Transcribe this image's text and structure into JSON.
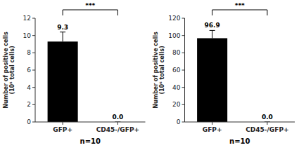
{
  "chart_data": [
    {
      "type": "bar",
      "categories": [
        "GFP+",
        "CD45-/GFP+"
      ],
      "values": [
        9.3,
        0.0
      ],
      "errors": [
        1.1,
        0.0
      ],
      "value_labels": [
        "9.3",
        "0.0"
      ],
      "data_labels": true,
      "ylabel": "Number of positive cells\n(10⁵ total cells)",
      "ylim": [
        0,
        12
      ],
      "yticks": [
        0,
        2,
        4,
        6,
        8,
        10,
        12
      ],
      "annotations": [
        "***",
        "n=10"
      ],
      "color": "#000000"
    },
    {
      "type": "bar",
      "categories": [
        "GFP+",
        "CD45-/GFP+"
      ],
      "values": [
        96.9,
        0.0
      ],
      "errors": [
        9.0,
        0.0
      ],
      "value_labels": [
        "96.9",
        "0.0"
      ],
      "data_labels": true,
      "ylabel": "Number of positive cells\n(10⁶ total cells)",
      "ylim": [
        0,
        120
      ],
      "yticks": [
        0,
        20,
        40,
        60,
        80,
        100,
        120
      ],
      "annotations": [
        "***",
        "n=10"
      ],
      "color": "#000000"
    }
  ]
}
